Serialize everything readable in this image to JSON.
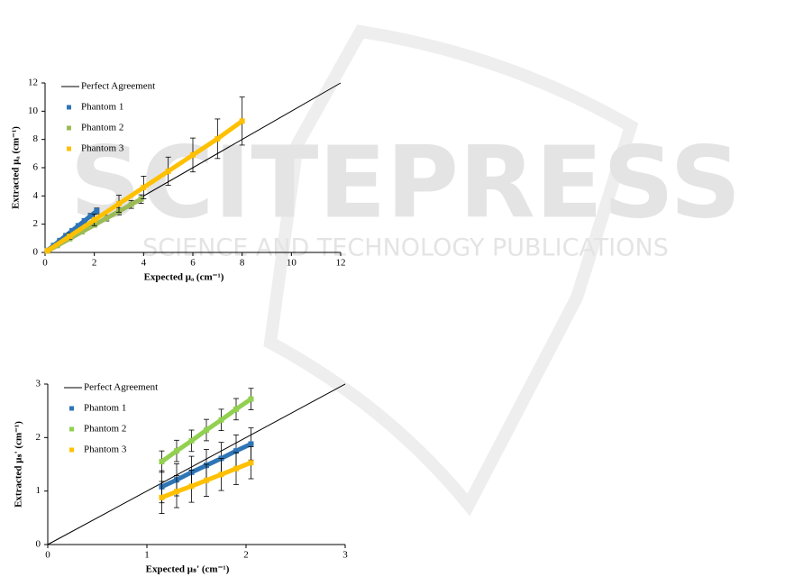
{
  "watermark": {
    "title": "SCITEPRESS",
    "subtitle": "SCIENCE AND TECHNOLOGY PUBLICATIONS"
  },
  "chart_data": [
    {
      "type": "scatter",
      "x_label": "Expected μₐ (cm⁻¹)",
      "y_label": "Extracted μₐ (cm⁻¹)",
      "xlim": [
        0,
        12
      ],
      "xticks": [
        0,
        2,
        4,
        6,
        8,
        10,
        12
      ],
      "ylim": [
        0,
        12
      ],
      "yticks": [
        0,
        2,
        4,
        6,
        8,
        10,
        12
      ],
      "series": [
        {
          "name": "Perfect Agreement",
          "mode": "line",
          "color": "#000000",
          "x": [
            0,
            12
          ],
          "values": [
            0,
            12
          ]
        },
        {
          "name": "Phantom 1",
          "color": "#2e75b6",
          "x": [
            0.1,
            0.35,
            0.6,
            0.85,
            1.1,
            1.35,
            1.6,
            1.85,
            2.1
          ],
          "values": [
            0.14,
            0.49,
            0.84,
            1.19,
            1.54,
            1.89,
            2.24,
            2.59,
            2.94
          ],
          "errors": [
            0.05,
            0.05,
            0.08,
            0.1,
            0.12,
            0.14,
            0.16,
            0.18,
            0.2
          ]
        },
        {
          "name": "Phantom 2",
          "color": "#9bbb59",
          "x": [
            0.1,
            0.5,
            1,
            1.5,
            2,
            2.5,
            3,
            3.5,
            3.9
          ],
          "values": [
            0.1,
            0.49,
            0.97,
            1.46,
            1.94,
            2.43,
            2.91,
            3.4,
            3.78
          ],
          "errors": [
            0.02,
            0.05,
            0.08,
            0.12,
            0.16,
            0.2,
            0.24,
            0.28,
            0.3
          ]
        },
        {
          "name": "Phantom 3",
          "color": "#ffc000",
          "x": [
            0.1,
            1,
            2,
            3,
            4,
            5,
            6,
            7,
            8
          ],
          "values": [
            0.12,
            1.15,
            2.3,
            3.45,
            4.6,
            5.75,
            6.9,
            8.05,
            9.3
          ],
          "errors": [
            0.05,
            0.2,
            0.4,
            0.6,
            0.8,
            1.0,
            1.2,
            1.4,
            1.7
          ]
        }
      ]
    },
    {
      "type": "scatter",
      "x_label": "Expected μₛ' (cm⁻¹)",
      "y_label": "Extracted μₛ' (cm⁻¹)",
      "xlim": [
        0,
        3
      ],
      "xticks": [
        0,
        1,
        2,
        3
      ],
      "ylim": [
        0,
        3
      ],
      "yticks": [
        0,
        1,
        2,
        3
      ],
      "series": [
        {
          "name": "Perfect Agreement",
          "mode": "line",
          "color": "#000000",
          "x": [
            0,
            3
          ],
          "values": [
            0,
            3
          ]
        },
        {
          "name": "Phantom 1",
          "color": "#2e75b6",
          "x": [
            1.15,
            1.3,
            1.45,
            1.6,
            1.75,
            1.9,
            2.05
          ],
          "values": [
            1.08,
            1.21,
            1.35,
            1.48,
            1.61,
            1.75,
            1.88
          ],
          "errors": [
            0.3,
            0.3,
            0.3,
            0.3,
            0.3,
            0.3,
            0.3
          ]
        },
        {
          "name": "Phantom 2",
          "color": "#92d050",
          "x": [
            1.15,
            1.3,
            1.45,
            1.6,
            1.75,
            1.9,
            2.05
          ],
          "values": [
            1.55,
            1.75,
            1.94,
            2.14,
            2.33,
            2.53,
            2.72
          ],
          "errors": [
            0.2,
            0.2,
            0.2,
            0.2,
            0.2,
            0.2,
            0.2
          ]
        },
        {
          "name": "Phantom 3",
          "color": "#ffc000",
          "x": [
            1.15,
            1.3,
            1.45,
            1.6,
            1.75,
            1.9,
            2.05
          ],
          "values": [
            0.88,
            0.99,
            1.09,
            1.2,
            1.31,
            1.42,
            1.53
          ],
          "errors": [
            0.3,
            0.3,
            0.3,
            0.3,
            0.3,
            0.3,
            0.3
          ]
        }
      ]
    }
  ]
}
